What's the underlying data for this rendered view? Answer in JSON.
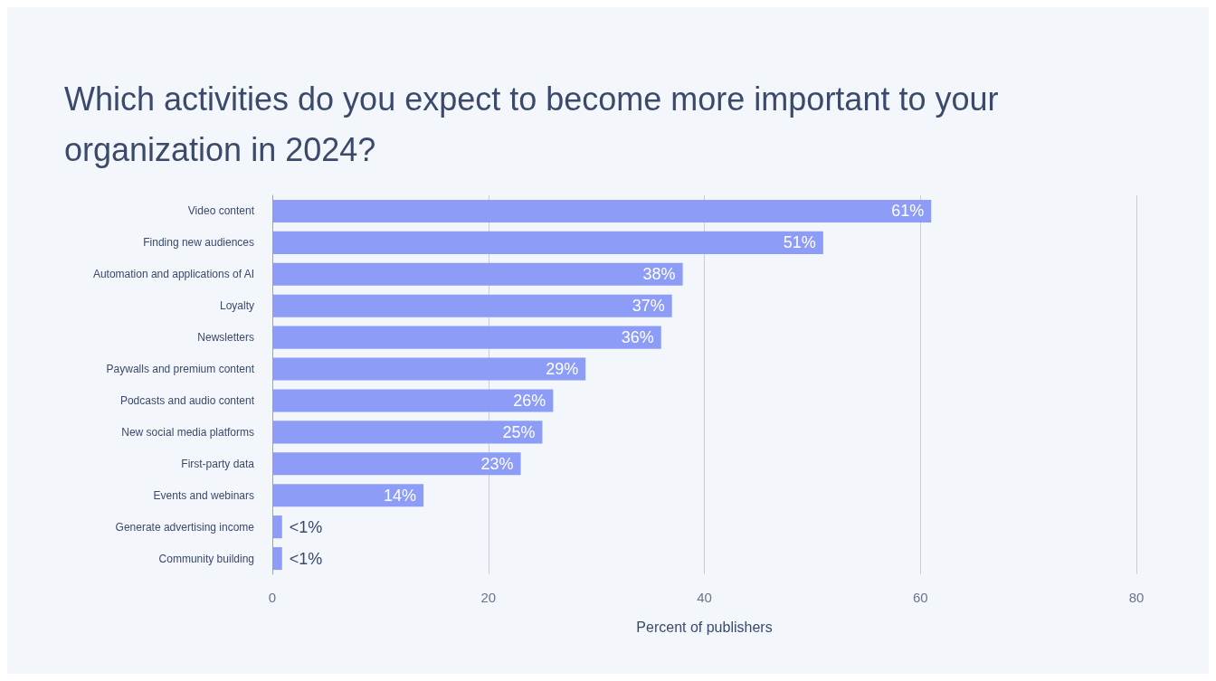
{
  "chart_data": {
    "type": "bar",
    "orientation": "horizontal",
    "title": "Which activities do you expect to become more important to your organization in 2024?",
    "xlabel": "Percent of publishers",
    "categories": [
      "Video content",
      "Finding new audiences",
      "Automation and applications of AI",
      "Loyalty",
      "Newsletters",
      "Paywalls and premium content",
      "Podcasts and audio content",
      "New social media platforms",
      "First-party data",
      "Events and webinars",
      "Generate advertising income",
      "Community building"
    ],
    "values": [
      61,
      51,
      38,
      37,
      36,
      29,
      26,
      25,
      23,
      14,
      0.9,
      0.9
    ],
    "value_labels": [
      "61%",
      "51%",
      "38%",
      "37%",
      "36%",
      "29%",
      "26%",
      "25%",
      "23%",
      "14%",
      "<1%",
      "<1%"
    ],
    "color": "#8c9cf7",
    "xlim": [
      0,
      80
    ],
    "xticks": [
      0,
      20,
      40,
      60,
      80
    ],
    "grid": "x"
  }
}
